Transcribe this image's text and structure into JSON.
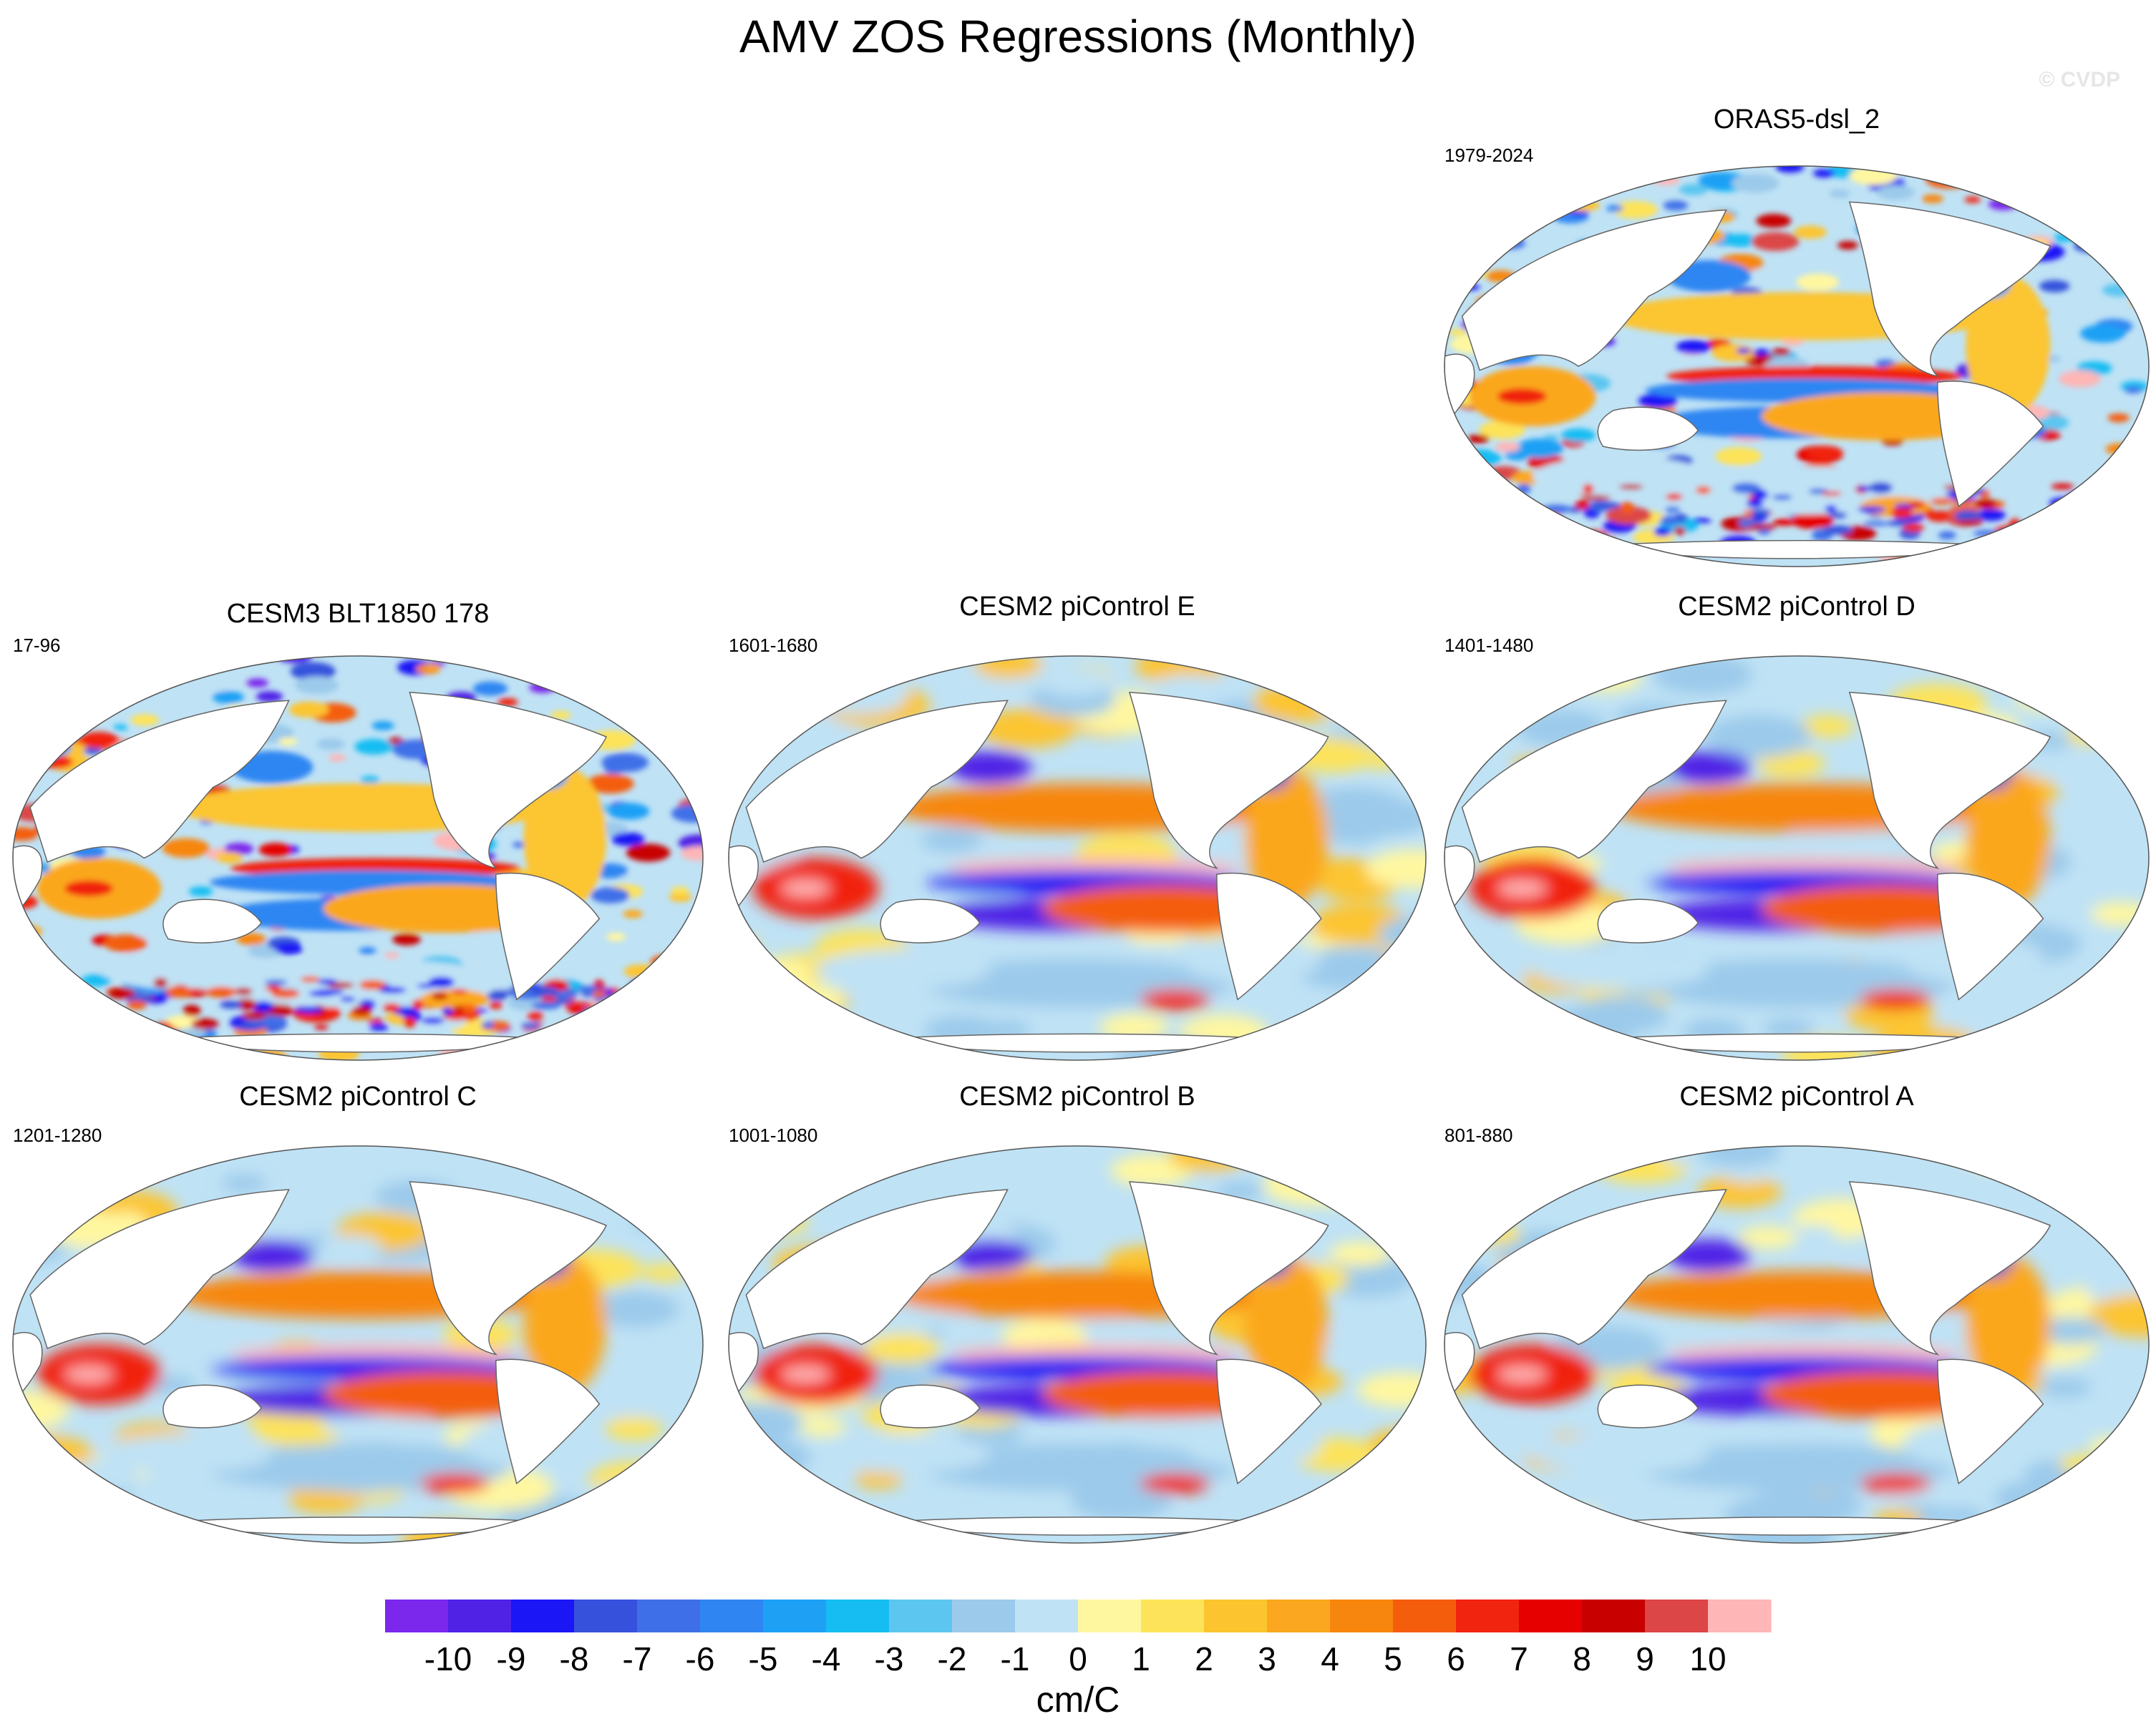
{
  "title": "AMV ZOS Regressions (Monthly)",
  "watermark": "© CVDP",
  "panels": [
    {
      "name": "ORAS5-dsl_2",
      "period": "1979-2024",
      "style": "obs"
    },
    {
      "name": "CESM3 BLT1850 178",
      "period": "17-96",
      "style": "noisy"
    },
    {
      "name": "CESM2 piControl E",
      "period": "1601-1680",
      "style": "model"
    },
    {
      "name": "CESM2 piControl D",
      "period": "1401-1480",
      "style": "model"
    },
    {
      "name": "CESM2 piControl C",
      "period": "1201-1280",
      "style": "model"
    },
    {
      "name": "CESM2 piControl B",
      "period": "1001-1080",
      "style": "model"
    },
    {
      "name": "CESM2 piControl A",
      "period": "801-880",
      "style": "model"
    }
  ],
  "colorbar": {
    "label": "cm/C",
    "ticks": [
      "-10",
      "-9",
      "-8",
      "-7",
      "-6",
      "-5",
      "-4",
      "-3",
      "-2",
      "-1",
      "0",
      "1",
      "2",
      "3",
      "4",
      "5",
      "6",
      "7",
      "8",
      "9",
      "10"
    ],
    "colors": [
      "#7b27ec",
      "#4f22e6",
      "#1b16f5",
      "#3652dc",
      "#3f6fe8",
      "#2f86f2",
      "#1ea0f5",
      "#15bdf3",
      "#5cc6f0",
      "#9ccaeb",
      "#bfe2f5",
      "#fff7a0",
      "#fde35a",
      "#fcc530",
      "#fba71f",
      "#f7860f",
      "#f45d0c",
      "#f1240f",
      "#e60000",
      "#c80000",
      "#dc4646",
      "#ffb6b6"
    ]
  },
  "chart_data": {
    "type": "heatmap",
    "title": "AMV ZOS Regressions (Monthly)",
    "units": "cm/C",
    "levels": [
      -10,
      -9,
      -8,
      -7,
      -6,
      -5,
      -4,
      -3,
      -2,
      -1,
      0,
      1,
      2,
      3,
      4,
      5,
      6,
      7,
      8,
      9,
      10
    ],
    "panels": [
      {
        "name": "ORAS5-dsl_2",
        "period": "1979-2024"
      },
      {
        "name": "CESM3 BLT1850 178",
        "period": "17-96"
      },
      {
        "name": "CESM2 piControl E",
        "period": "1601-1680"
      },
      {
        "name": "CESM2 piControl D",
        "period": "1401-1480"
      },
      {
        "name": "CESM2 piControl C",
        "period": "1201-1280"
      },
      {
        "name": "CESM2 piControl B",
        "period": "1001-1080"
      },
      {
        "name": "CESM2 piControl A",
        "period": "801-880"
      }
    ]
  }
}
